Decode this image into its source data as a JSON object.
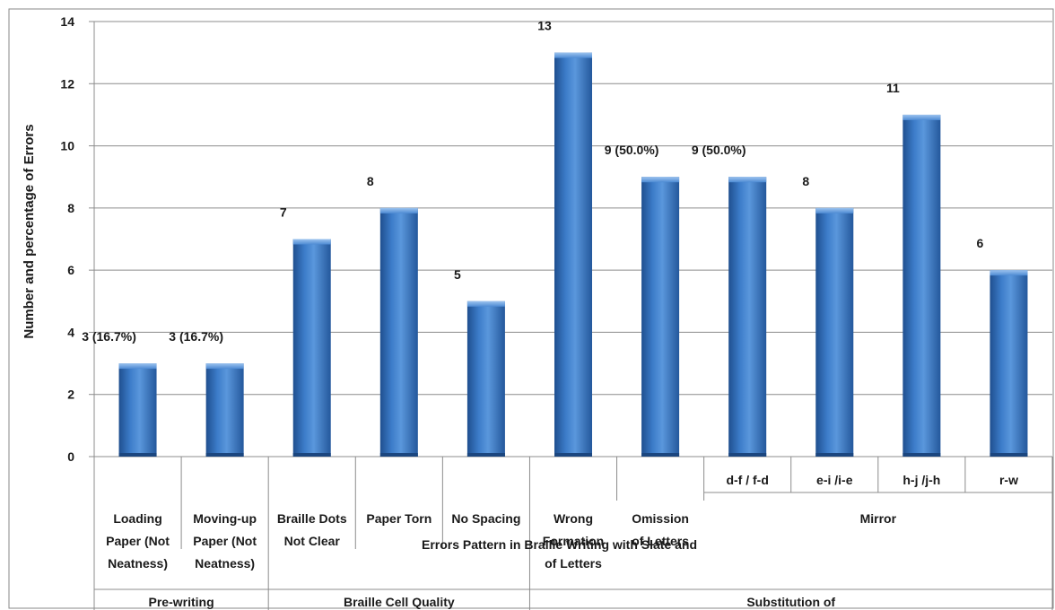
{
  "chart_data": {
    "type": "bar",
    "ylabel": "Number and percentage of Errors",
    "xlabel": "Errors Pattern in Braille Writing with Slate and",
    "ylim": [
      0,
      14
    ],
    "yticks": [
      0,
      2,
      4,
      6,
      8,
      10,
      12,
      14
    ],
    "grid": true,
    "bar_color": "#3a78c4",
    "categories": [
      {
        "label": "Loading Paper (Not Neatness)",
        "lines": [
          "Loading",
          "Paper (Not",
          "Neatness)"
        ],
        "value": 3,
        "data_label": "3 (16.7%)"
      },
      {
        "label": "Moving-up Paper (Not Neatness)",
        "lines": [
          "Moving-up",
          "Paper (Not",
          "Neatness)"
        ],
        "value": 3,
        "data_label": "3 (16.7%)"
      },
      {
        "label": "Braille Dots Not Clear",
        "lines": [
          "Braille Dots",
          "Not Clear"
        ],
        "value": 7,
        "data_label": "7"
      },
      {
        "label": "Paper Torn",
        "lines": [
          "Paper Torn"
        ],
        "value": 8,
        "data_label": "8"
      },
      {
        "label": "No Spacing",
        "lines": [
          "No Spacing"
        ],
        "value": 5,
        "data_label": "5"
      },
      {
        "label": "Wrong Formation of Letters",
        "lines": [
          "Wrong",
          "Formation",
          "of Letters"
        ],
        "value": 13,
        "data_label": "13"
      },
      {
        "label": "Omission of Letters",
        "lines": [
          "Omission",
          "of Letters"
        ],
        "value": 9,
        "data_label": "9 (50.0%)"
      },
      {
        "label": "d-f / f-d",
        "lines": [],
        "value": 9,
        "data_label": "9 (50.0%)"
      },
      {
        "label": "e-i /i-e",
        "lines": [],
        "value": 8,
        "data_label": "8"
      },
      {
        "label": "h-j /j-h",
        "lines": [],
        "value": 11,
        "data_label": "11"
      },
      {
        "label": "r-w",
        "lines": [],
        "value": 6,
        "data_label": "6"
      }
    ],
    "sublabels": [
      "d-f / f-d",
      "e-i /i-e",
      "h-j /j-h",
      "r-w"
    ],
    "mid_group": "Mirror",
    "groups": [
      "Pre-writing",
      "Braille Cell Quality",
      "Substitution of"
    ]
  }
}
